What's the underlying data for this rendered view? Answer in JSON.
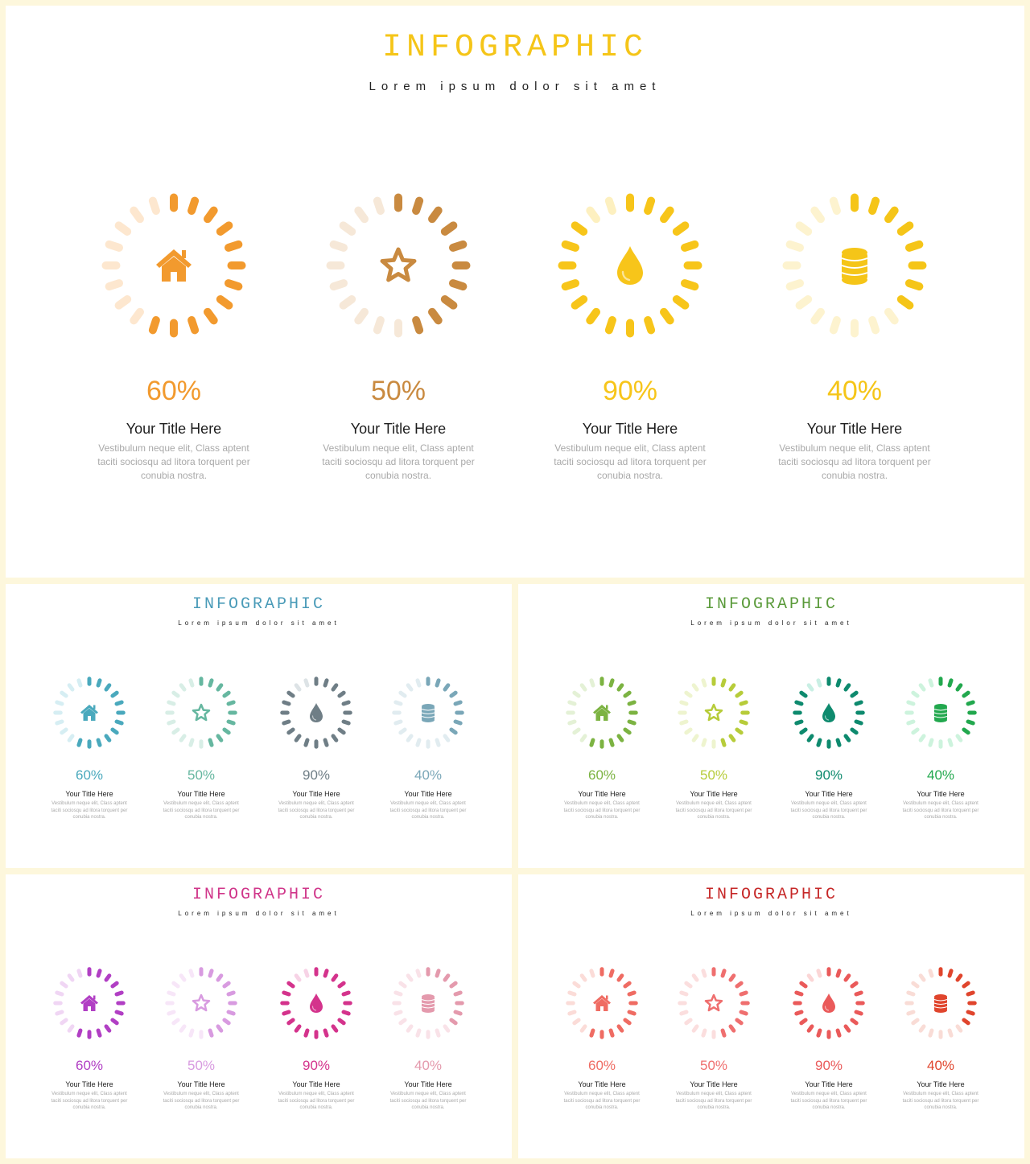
{
  "slides": [
    {
      "title": "INFOGRAPHIC",
      "subtitle": "Lorem ipsum dolor sit amet",
      "title_color": "#f5c518",
      "items": [
        {
          "icon": "home-icon",
          "percent": 60,
          "percent_label": "60%",
          "color": "#f29a2e",
          "light_color": "#fde7cf",
          "title": "Your Title Here",
          "description": "Vestibulum neque elit, Class aptent taciti sociosqu ad litora torquent per conubia nostra."
        },
        {
          "icon": "star-icon",
          "percent": 50,
          "percent_label": "50%",
          "color": "#c98a40",
          "light_color": "#f6e8d8",
          "title": "Your Title Here",
          "description": "Vestibulum neque elit, Class aptent taciti sociosqu ad litora torquent per conubia nostra."
        },
        {
          "icon": "drop-icon",
          "percent": 90,
          "percent_label": "90%",
          "color": "#f7c51a",
          "light_color": "#fdf0c0",
          "title": "Your Title Here",
          "description": "Vestibulum neque elit, Class aptent taciti sociosqu ad litora torquent per conubia nostra."
        },
        {
          "icon": "database-icon",
          "percent": 40,
          "percent_label": "40%",
          "color": "#f5c518",
          "light_color": "#fdf3cf",
          "title": "Your Title Here",
          "description": "Vestibulum neque elit, Class aptent taciti sociosqu ad litora torquent per conubia nostra."
        }
      ]
    },
    {
      "title": "INFOGRAPHIC",
      "subtitle": "Lorem ipsum dolor sit amet",
      "title_color": "#4a9bb8",
      "items": [
        {
          "icon": "home-icon",
          "percent": 60,
          "percent_label": "60%",
          "color": "#4aa9bd",
          "light_color": "#d6eef3",
          "title": "Your Title Here",
          "description": "Vestibulum neque elit, Class aptent taciti sociosqu ad litora torquent per conubia nostra."
        },
        {
          "icon": "star-icon",
          "percent": 50,
          "percent_label": "50%",
          "color": "#66b7a0",
          "light_color": "#d8eee6",
          "title": "Your Title Here",
          "description": "Vestibulum neque elit, Class aptent taciti sociosqu ad litora torquent per conubia nostra."
        },
        {
          "icon": "drop-icon",
          "percent": 90,
          "percent_label": "90%",
          "color": "#6f7e86",
          "light_color": "#dde3e6",
          "title": "Your Title Here",
          "description": "Vestibulum neque elit, Class aptent taciti sociosqu ad litora torquent per conubia nostra."
        },
        {
          "icon": "database-icon",
          "percent": 40,
          "percent_label": "40%",
          "color": "#7aa7b8",
          "light_color": "#e1ecf0",
          "title": "Your Title Here",
          "description": "Vestibulum neque elit, Class aptent taciti sociosqu ad litora torquent per conubia nostra."
        }
      ]
    },
    {
      "title": "INFOGRAPHIC",
      "subtitle": "Lorem ipsum dolor sit amet",
      "title_color": "#5a9a3a",
      "items": [
        {
          "icon": "home-icon",
          "percent": 60,
          "percent_label": "60%",
          "color": "#7cb342",
          "light_color": "#e4f1d6",
          "title": "Your Title Here",
          "description": "Vestibulum neque elit, Class aptent taciti sociosqu ad litora torquent per conubia nostra."
        },
        {
          "icon": "star-icon",
          "percent": 50,
          "percent_label": "50%",
          "color": "#b7cc3a",
          "light_color": "#eef4cf",
          "title": "Your Title Here",
          "description": "Vestibulum neque elit, Class aptent taciti sociosqu ad litora torquent per conubia nostra."
        },
        {
          "icon": "drop-icon",
          "percent": 90,
          "percent_label": "90%",
          "color": "#0e8a6e",
          "light_color": "#c9efe4",
          "title": "Your Title Here",
          "description": "Vestibulum neque elit, Class aptent taciti sociosqu ad litora torquent per conubia nostra."
        },
        {
          "icon": "database-icon",
          "percent": 40,
          "percent_label": "40%",
          "color": "#22a84e",
          "light_color": "#cdf3dd",
          "title": "Your Title Here",
          "description": "Vestibulum neque elit, Class aptent taciti sociosqu ad litora torquent per conubia nostra."
        }
      ]
    },
    {
      "title": "INFOGRAPHIC",
      "subtitle": "Lorem ipsum dolor sit amet",
      "title_color": "#d0368a",
      "items": [
        {
          "icon": "home-icon",
          "percent": 60,
          "percent_label": "60%",
          "color": "#b13fc4",
          "light_color": "#f0d6f4",
          "title": "Your Title Here",
          "description": "Vestibulum neque elit, Class aptent taciti sociosqu ad litora torquent per conubia nostra."
        },
        {
          "icon": "star-icon",
          "percent": 50,
          "percent_label": "50%",
          "color": "#d89be0",
          "light_color": "#f7e6f8",
          "title": "Your Title Here",
          "description": "Vestibulum neque elit, Class aptent taciti sociosqu ad litora torquent per conubia nostra."
        },
        {
          "icon": "drop-icon",
          "percent": 90,
          "percent_label": "90%",
          "color": "#d4338c",
          "light_color": "#f7d3e6",
          "title": "Your Title Here",
          "description": "Vestibulum neque elit, Class aptent taciti sociosqu ad litora torquent per conubia nostra."
        },
        {
          "icon": "database-icon",
          "percent": 40,
          "percent_label": "40%",
          "color": "#e49aad",
          "light_color": "#f9e2e8",
          "title": "Your Title Here",
          "description": "Vestibulum neque elit, Class aptent taciti sociosqu ad litora torquent per conubia nostra."
        }
      ]
    },
    {
      "title": "INFOGRAPHIC",
      "subtitle": "Lorem ipsum dolor sit amet",
      "title_color": "#c62828",
      "items": [
        {
          "icon": "home-icon",
          "percent": 60,
          "percent_label": "60%",
          "color": "#ef6c63",
          "light_color": "#fbdcd8",
          "title": "Your Title Here",
          "description": "Vestibulum neque elit, Class aptent taciti sociosqu ad litora torquent per conubia nostra."
        },
        {
          "icon": "star-icon",
          "percent": 50,
          "percent_label": "50%",
          "color": "#ef6f6f",
          "light_color": "#fbdede",
          "title": "Your Title Here",
          "description": "Vestibulum neque elit, Class aptent taciti sociosqu ad litora torquent per conubia nostra."
        },
        {
          "icon": "drop-icon",
          "percent": 90,
          "percent_label": "90%",
          "color": "#ea5a5a",
          "light_color": "#fbd6d6",
          "title": "Your Title Here",
          "description": "Vestibulum neque elit, Class aptent taciti sociosqu ad litora torquent per conubia nostra."
        },
        {
          "icon": "database-icon",
          "percent": 40,
          "percent_label": "40%",
          "color": "#e0452d",
          "light_color": "#f9dcd6",
          "title": "Your Title Here",
          "description": "Vestibulum neque elit, Class aptent taciti sociosqu ad litora torquent per conubia nostra."
        }
      ]
    }
  ]
}
